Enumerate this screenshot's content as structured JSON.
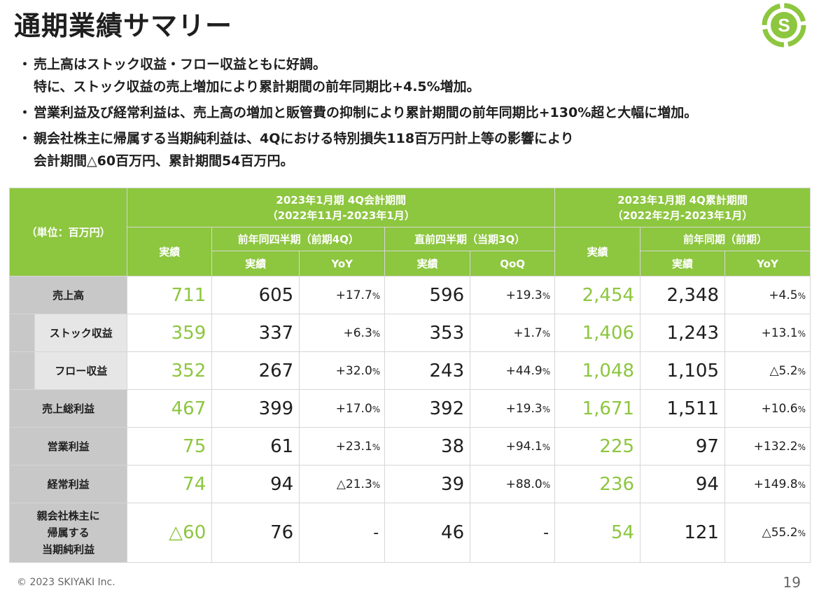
{
  "title": "通期業績サマリー",
  "bullets": [
    [
      "売上高はストック収益・フロー収益ともに好調。",
      "特に、ストック収益の売上増加により累計期間の前年同期比+4.5%増加。"
    ],
    [
      "営業利益及び経常利益は、売上高の増加と販管費の抑制により累計期間の前年同期比+130%超と大幅に増加。"
    ],
    [
      "親会社株主に帰属する当期純利益は、4Qにおける特別損失118百万円計上等の影響により",
      "会計期間△60百万円、累計期間54百万円。"
    ]
  ],
  "bullet_marker": "・",
  "table": {
    "unit_label": "（単位：百万円）",
    "group1_title": "2023年1月期 4Q会計期間",
    "group1_period": "（2022年11月-2023年1月）",
    "group2_title": "2023年1月期 4Q累計期間",
    "group2_period": "（2022年2月-2023年1月）",
    "actual": "実績",
    "prev_q": "前年同四半期（前期4Q）",
    "prior_q": "直前四半期（当期3Q）",
    "prev_y": "前年同期（前期）",
    "yoy": "YoY",
    "qoq": "QoQ",
    "pct_unit": "%",
    "rows": [
      {
        "label": "売上高",
        "a": "711",
        "p": "605",
        "py": "+17.7",
        "q": "596",
        "qq": "+19.3",
        "c": "2,454",
        "cp": "2,348",
        "cy": "+4.5"
      },
      {
        "label": "ストック収益",
        "a": "359",
        "p": "337",
        "py": "+6.3",
        "q": "353",
        "qq": "+1.7",
        "c": "1,406",
        "cp": "1,243",
        "cy": "+13.1"
      },
      {
        "label": "フロー収益",
        "a": "352",
        "p": "267",
        "py": "+32.0",
        "q": "243",
        "qq": "+44.9",
        "c": "1,048",
        "cp": "1,105",
        "cy": "△5.2"
      },
      {
        "label": "売上総利益",
        "a": "467",
        "p": "399",
        "py": "+17.0",
        "q": "392",
        "qq": "+19.3",
        "c": "1,671",
        "cp": "1,511",
        "cy": "+10.6"
      },
      {
        "label": "営業利益",
        "a": "75",
        "p": "61",
        "py": "+23.1",
        "q": "38",
        "qq": "+94.1",
        "c": "225",
        "cp": "97",
        "cy": "+132.2"
      },
      {
        "label": "経常利益",
        "a": "74",
        "p": "94",
        "py": "△21.3",
        "q": "39",
        "qq": "+88.0",
        "c": "236",
        "cp": "94",
        "cy": "+149.8"
      },
      {
        "label_lines": [
          "親会社株主に",
          "帰属する",
          "当期純利益"
        ],
        "a": "△60",
        "p": "76",
        "py": "-",
        "q": "46",
        "qq": "-",
        "c": "54",
        "cp": "121",
        "cy": "△55.2"
      }
    ]
  },
  "footer": "© 2023 SKIYAKI Inc.",
  "page_number": "19",
  "logo": {
    "name": "skiyaki-logo",
    "letter": "S",
    "color": "#8dc63f"
  },
  "colors": {
    "accent": "#8dc63f",
    "label_bg": "#c8c8c8",
    "sublabel_bg": "#e6e6e6"
  }
}
